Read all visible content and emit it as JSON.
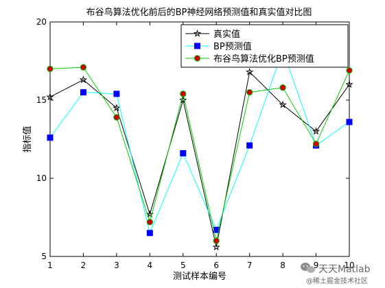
{
  "chart_data": {
    "type": "line",
    "title": "布谷鸟算法优化前后的BP神经网络预测值和真实值对比图",
    "xlabel": "测试样本编号",
    "ylabel": "指标值",
    "x": [
      1,
      2,
      3,
      4,
      5,
      6,
      7,
      8,
      9,
      10
    ],
    "xlim": [
      1,
      10
    ],
    "ylim": [
      5,
      20
    ],
    "xticks": [
      "1",
      "2",
      "3",
      "4",
      "5",
      "6",
      "7",
      "8",
      "9",
      "10"
    ],
    "yticks": [
      "5",
      "10",
      "15",
      "20"
    ],
    "grid": false,
    "legend_position": "top-right",
    "series": [
      {
        "name": "真实值",
        "color": "#000000",
        "marker": "star",
        "values": [
          15.2,
          16.3,
          14.5,
          7.7,
          15.0,
          5.6,
          16.8,
          14.7,
          13.0,
          16.0
        ]
      },
      {
        "name": "BP预测值",
        "color": "#00ffff",
        "marker": "square",
        "marker_fill": "#0000ff",
        "values": [
          12.6,
          15.5,
          15.4,
          6.5,
          11.6,
          6.7,
          12.1,
          18.2,
          12.1,
          13.6
        ]
      },
      {
        "name": "布谷鸟算法优化BP预测值",
        "color": "#00cc00",
        "marker": "circle",
        "marker_fill": "#cc0000",
        "values": [
          17.0,
          17.1,
          13.9,
          7.2,
          15.4,
          6.0,
          15.5,
          15.8,
          12.2,
          16.9
        ]
      }
    ]
  },
  "watermark": {
    "brand": "天天Matlab",
    "community": "@稀土掘金技术社区"
  }
}
